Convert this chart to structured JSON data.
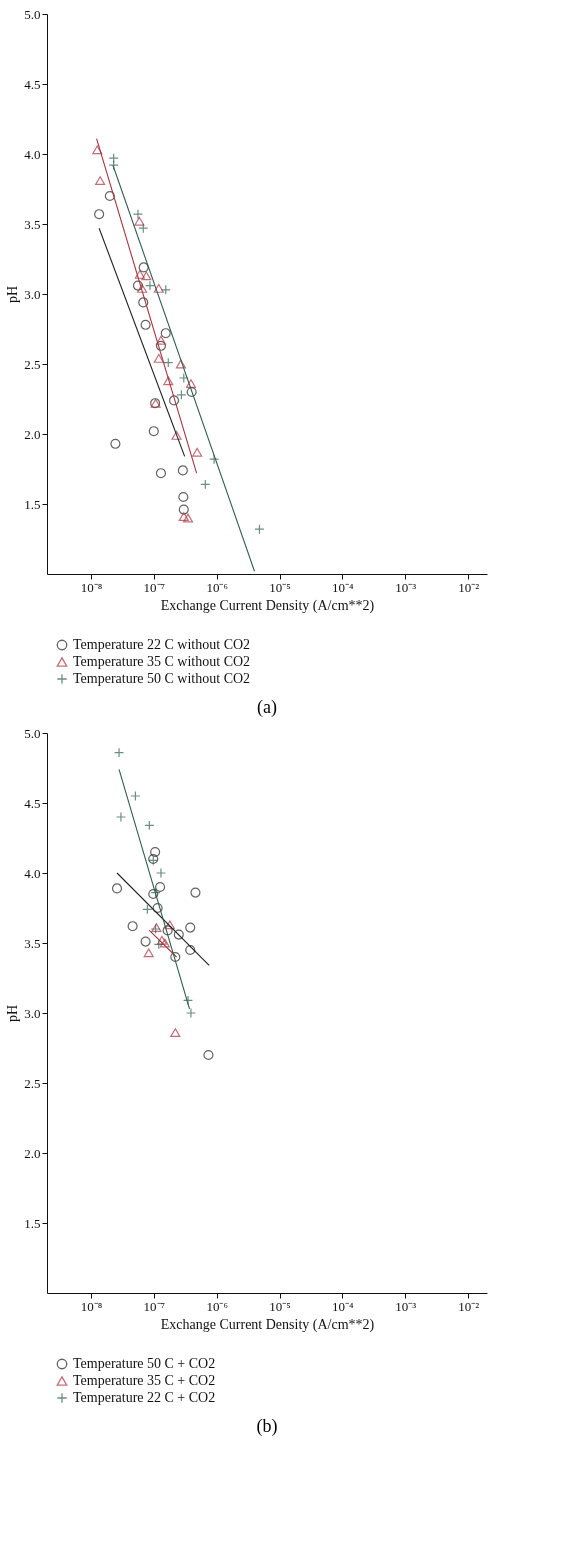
{
  "chart_data": [
    {
      "type": "scatter",
      "title": "(a)",
      "xlabel": "Exchange Current Density (A/cm**2)",
      "ylabel": "pH",
      "log": "x",
      "legend": "bottom",
      "xlim": [
        2e-09,
        0.02
      ],
      "ylim": [
        1.0,
        5.0
      ],
      "xticks": [
        {
          "value": 1e-08,
          "label": "10⁻⁸"
        },
        {
          "value": 1e-07,
          "label": "10⁻⁷"
        },
        {
          "value": 1e-06,
          "label": "10⁻⁶"
        },
        {
          "value": 1e-05,
          "label": "10⁻⁵"
        },
        {
          "value": 0.0001,
          "label": "10⁻⁴"
        },
        {
          "value": 0.001,
          "label": "10⁻³"
        },
        {
          "value": 0.01,
          "label": "10⁻²"
        }
      ],
      "yticks": [
        1.5,
        {
          "value": 2,
          "label": "2.0"
        },
        2.5,
        {
          "value": 3,
          "label": "3.0"
        },
        3.5,
        {
          "value": 4,
          "label": "4.0"
        },
        4.5,
        {
          "value": 5,
          "label": "5.0"
        }
      ],
      "series": [
        {
          "name": "Temperature 22 C without CO2",
          "marker": "circle",
          "color": "#222222",
          "x": [
            1.35e-08,
            2e-08,
            6.9e-08,
            5.6e-08,
            6.8e-08,
            7.4e-08,
            1.55e-07,
            1.3e-07,
            1.05e-07,
            2.1e-07,
            4e-07,
            1e-07,
            2.45e-08,
            1.3e-07,
            2.9e-07,
            2.95e-07,
            3e-07
          ],
          "values": [
            3.57,
            3.7,
            3.19,
            3.06,
            2.94,
            2.78,
            2.72,
            2.63,
            2.22,
            2.24,
            2.3,
            2.02,
            1.93,
            1.72,
            1.74,
            1.55,
            1.46
          ]
        },
        {
          "name": "Temperature 35 C without CO2",
          "marker": "triangle",
          "color": "#a8323e",
          "x": [
            1.26e-08,
            1.4e-08,
            5.9e-08,
            6e-08,
            7.6e-08,
            6.5e-08,
            1.2e-07,
            1.3e-07,
            1.2e-07,
            1.7e-07,
            2.7e-07,
            3.9e-07,
            1.07e-07,
            2.3e-07,
            4.9e-07,
            3e-07,
            3.5e-07
          ],
          "values": [
            4.03,
            3.81,
            3.52,
            3.14,
            3.13,
            3.04,
            3.04,
            2.67,
            2.54,
            2.38,
            2.5,
            2.36,
            2.22,
            1.99,
            1.87,
            1.41,
            1.4
          ]
        },
        {
          "name": "Temperature 50 C without CO2",
          "marker": "cross",
          "color": "#2f5e4e",
          "x": [
            2.3e-08,
            2.3e-08,
            5.6e-08,
            6.8e-08,
            8.7e-08,
            1.55e-07,
            1.7e-07,
            3e-07,
            2.75e-07,
            9.1e-07,
            6.6e-07,
            4.8e-06
          ],
          "values": [
            3.97,
            3.92,
            3.57,
            3.47,
            3.06,
            3.03,
            2.51,
            2.4,
            2.28,
            1.82,
            1.64,
            1.32
          ]
        },
        {
          "type": "line",
          "color": "#222222",
          "x": [
            1.35e-08,
            3.1e-07
          ],
          "values": [
            3.47,
            1.84
          ]
        },
        {
          "type": "line",
          "color": "#a8323e",
          "x": [
            1.23e-08,
            4.8e-07
          ],
          "values": [
            4.11,
            1.72
          ]
        },
        {
          "type": "line",
          "color": "#2f5e4e",
          "x": [
            2.24e-08,
            4e-06
          ],
          "values": [
            3.92,
            1.02
          ]
        }
      ]
    },
    {
      "type": "scatter",
      "title": "(b)",
      "xlabel": "Exchange Current Density (A/cm**2)",
      "ylabel": "pH",
      "log": "x",
      "legend": "bottom",
      "xlim": [
        2e-09,
        0.02
      ],
      "ylim": [
        1.0,
        5.0
      ],
      "xticks": [
        {
          "value": 1e-08,
          "label": "10⁻⁸"
        },
        {
          "value": 1e-07,
          "label": "10⁻⁷"
        },
        {
          "value": 1e-06,
          "label": "10⁻⁶"
        },
        {
          "value": 1e-05,
          "label": "10⁻⁵"
        },
        {
          "value": 0.0001,
          "label": "10⁻⁴"
        },
        {
          "value": 0.001,
          "label": "10⁻³"
        },
        {
          "value": 0.01,
          "label": "10⁻²"
        }
      ],
      "yticks": [
        1.5,
        {
          "value": 2,
          "label": "2.0"
        },
        2.5,
        {
          "value": 3,
          "label": "3.0"
        },
        3.5,
        {
          "value": 4,
          "label": "4.0"
        },
        4.5,
        {
          "value": 5,
          "label": "5.0"
        }
      ],
      "series": [
        {
          "name": "Temperature 50 C + CO2",
          "marker": "circle",
          "color": "#222222",
          "x": [
            1.05e-07,
            9.8e-08,
            1.26e-07,
            2.6e-08,
            9.8e-08,
            4.6e-07,
            1.15e-07,
            4.6e-08,
            7.4e-08,
            2.5e-07,
            3.8e-07,
            3.8e-07,
            2.2e-07,
            1.66e-07,
            7.4e-07
          ],
          "values": [
            4.15,
            4.1,
            3.9,
            3.89,
            3.85,
            3.86,
            3.75,
            3.62,
            3.51,
            3.56,
            3.61,
            3.45,
            3.4,
            3.59,
            2.7
          ]
        },
        {
          "name": "Temperature 35 C + CO2",
          "marker": "triangle",
          "color": "#a8323e",
          "x": [
            8.3e-08,
            1.1e-07,
            1.8e-07,
            1.35e-07,
            1.5e-07,
            2.2e-07
          ],
          "values": [
            3.43,
            3.61,
            3.63,
            3.52,
            3.5,
            2.86
          ]
        },
        {
          "name": "Temperature 22 C + CO2",
          "marker": "cross",
          "color": "#2f5e4e",
          "x": [
            2.8e-08,
            5.1e-08,
            3e-08,
            8.5e-08,
            9.8e-08,
            1.3e-07,
            1.07e-07,
            7.9e-08,
            1.07e-07,
            1.2e-07,
            3.5e-07,
            3.9e-07
          ],
          "values": [
            4.86,
            4.55,
            4.4,
            4.34,
            4.09,
            4.0,
            3.86,
            3.74,
            3.6,
            3.49,
            3.09,
            3.0
          ]
        },
        {
          "type": "line",
          "color": "#222222",
          "x": [
            2.6e-08,
            7.6e-07
          ],
          "values": [
            4.0,
            3.34
          ]
        },
        {
          "type": "line",
          "color": "#a8323e",
          "x": [
            8.5e-08,
            2.3e-07
          ],
          "values": [
            3.59,
            3.4
          ]
        },
        {
          "type": "line",
          "color": "#2f5e4e",
          "x": [
            2.8e-08,
            3.7e-07
          ],
          "values": [
            4.74,
            3.03
          ]
        }
      ]
    }
  ]
}
